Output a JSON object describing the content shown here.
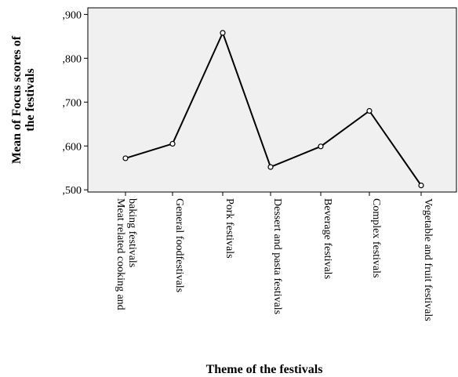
{
  "chart_data": {
    "type": "line",
    "title": "",
    "xlabel": "Theme of the festivals",
    "ylabel": [
      "Mean of Focus scores of",
      "the festivals"
    ],
    "categories": [
      [
        "Meat related cooking and",
        "baking festivals"
      ],
      [
        "General foodfestivals"
      ],
      [
        "Pork festivals"
      ],
      [
        "Dessert and pasta festivals"
      ],
      [
        "Beverage festivals"
      ],
      [
        "Complex festivals"
      ],
      [
        "Vegetable and fruit festivals"
      ]
    ],
    "values": [
      0.572,
      0.605,
      0.858,
      0.552,
      0.599,
      0.68,
      0.51
    ],
    "ylim": [
      0.495,
      0.915
    ],
    "yticks": [
      0.5,
      0.6,
      0.7,
      0.8,
      0.9
    ],
    "ytick_labels": [
      ",500",
      ",600",
      ",700",
      ",800",
      ",900"
    ],
    "grid": false,
    "legend": "none",
    "colors": {
      "plot_background": "#f0f0f0",
      "line": "#000000",
      "marker_fill": "#ffffff",
      "axis": "#000000"
    }
  }
}
